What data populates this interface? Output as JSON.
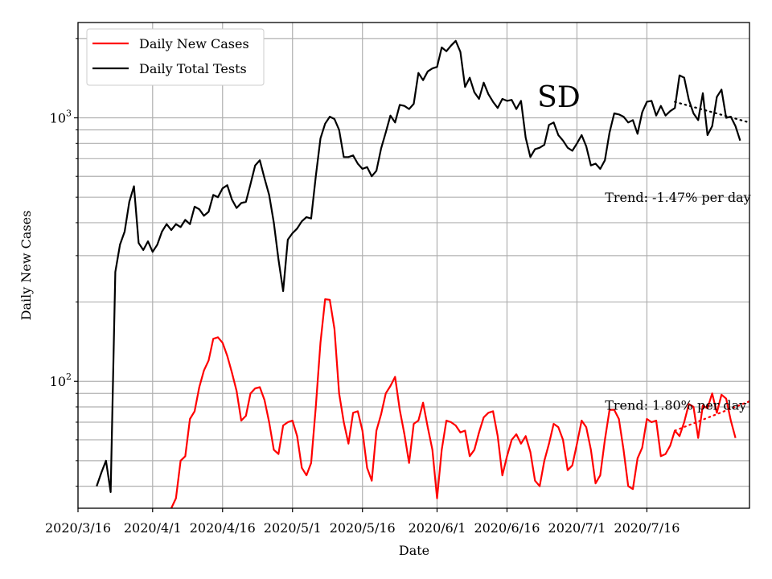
{
  "chart_data": {
    "type": "line",
    "title": "",
    "xlabel": "Date",
    "ylabel": "Daily New Cases",
    "yscale": "log",
    "ylim": [
      33,
      2300
    ],
    "xlim_days": [
      0,
      144
    ],
    "grid": true,
    "legend": {
      "position": "top-left",
      "entries": [
        "Daily New Cases",
        "Daily Total Tests"
      ]
    },
    "x_tick_labels": [
      {
        "day": 0,
        "label": "2020/3/16"
      },
      {
        "day": 16,
        "label": "2020/4/1"
      },
      {
        "day": 31,
        "label": "2020/4/16"
      },
      {
        "day": 46,
        "label": "2020/5/1"
      },
      {
        "day": 61,
        "label": "2020/5/16"
      },
      {
        "day": 77,
        "label": "2020/6/1"
      },
      {
        "day": 92,
        "label": "2020/6/16"
      },
      {
        "day": 107,
        "label": "2020/7/1"
      },
      {
        "day": 122,
        "label": "2020/7/16"
      }
    ],
    "y_major_ticks": [
      {
        "value": 100,
        "label_base": "10",
        "label_exp": "2"
      },
      {
        "value": 1000,
        "label_base": "10",
        "label_exp": "3"
      }
    ],
    "y_minor_ticks": [
      40,
      50,
      60,
      70,
      80,
      90,
      200,
      300,
      400,
      500,
      600,
      700,
      800,
      900,
      2000
    ],
    "x_minor_ticks": [],
    "annotations": [
      {
        "text": "SD",
        "day": 98.5,
        "value": 1100,
        "size": "large"
      },
      {
        "text": "Trend: -1.47% per day",
        "day": 113,
        "value": 480
      },
      {
        "text": "Trend: 1.80% per day",
        "day": 113,
        "value": 78
      }
    ],
    "series": [
      {
        "name": "Daily New Cases",
        "color": "#ff0000",
        "start_day": 20,
        "values": [
          33,
          36,
          50,
          52,
          72,
          77,
          95,
          110,
          120,
          145,
          147,
          140,
          125,
          108,
          92,
          71,
          74,
          90,
          94,
          95,
          85,
          70,
          55,
          53,
          68,
          70,
          71,
          62,
          47,
          44,
          49,
          80,
          140,
          205,
          204,
          158,
          90,
          70,
          58,
          76,
          77,
          65,
          47,
          42,
          65,
          75,
          90,
          96,
          104,
          78,
          63,
          49,
          69,
          71,
          83,
          67,
          55,
          36,
          55,
          71,
          70,
          68,
          64,
          65,
          52,
          55,
          64,
          73,
          76,
          77,
          62,
          44,
          52,
          60,
          63,
          58,
          62,
          54,
          42,
          40,
          50,
          58,
          69,
          67,
          60,
          46,
          48,
          58,
          71,
          67,
          55,
          41,
          44,
          60,
          78,
          78,
          72,
          55,
          40,
          39,
          51,
          56,
          72,
          70,
          71,
          52,
          53,
          57,
          65,
          62,
          70,
          82,
          80,
          61,
          81,
          79,
          90,
          76,
          89,
          86,
          71,
          61
        ]
      },
      {
        "name": "Daily Total Tests",
        "color": "#000000",
        "start_day": 4,
        "values": [
          40,
          45,
          50,
          38,
          260,
          330,
          370,
          480,
          550,
          335,
          315,
          340,
          310,
          330,
          370,
          395,
          375,
          395,
          385,
          410,
          395,
          460,
          450,
          425,
          440,
          510,
          500,
          540,
          555,
          490,
          455,
          475,
          480,
          560,
          660,
          690,
          590,
          510,
          400,
          290,
          220,
          345,
          365,
          380,
          405,
          420,
          415,
          600,
          835,
          950,
          1010,
          990,
          900,
          710,
          710,
          720,
          670,
          640,
          650,
          600,
          630,
          765,
          880,
          1020,
          960,
          1120,
          1110,
          1080,
          1130,
          1480,
          1390,
          1500,
          1540,
          1560,
          1850,
          1790,
          1880,
          1960,
          1780,
          1310,
          1420,
          1250,
          1180,
          1360,
          1230,
          1150,
          1090,
          1180,
          1160,
          1170,
          1080,
          1160,
          840,
          710,
          760,
          770,
          790,
          940,
          960,
          860,
          820,
          770,
          750,
          800,
          860,
          780,
          660,
          670,
          640,
          690,
          880,
          1040,
          1030,
          1010,
          960,
          980,
          870,
          1050,
          1150,
          1160,
          1020,
          1110,
          1020,
          1060,
          1090,
          1450,
          1420,
          1170,
          1040,
          980,
          1240,
          860,
          930,
          1200,
          1280,
          1000,
          1010,
          930,
          820
        ]
      }
    ],
    "trend_lines": [
      {
        "series": "Daily Total Tests",
        "start_day": 128,
        "start_value": 1150,
        "end_day": 144,
        "end_value": 960
      },
      {
        "series": "Daily New Cases",
        "start_day": 128,
        "start_value": 65,
        "end_day": 144,
        "end_value": 84
      }
    ]
  }
}
